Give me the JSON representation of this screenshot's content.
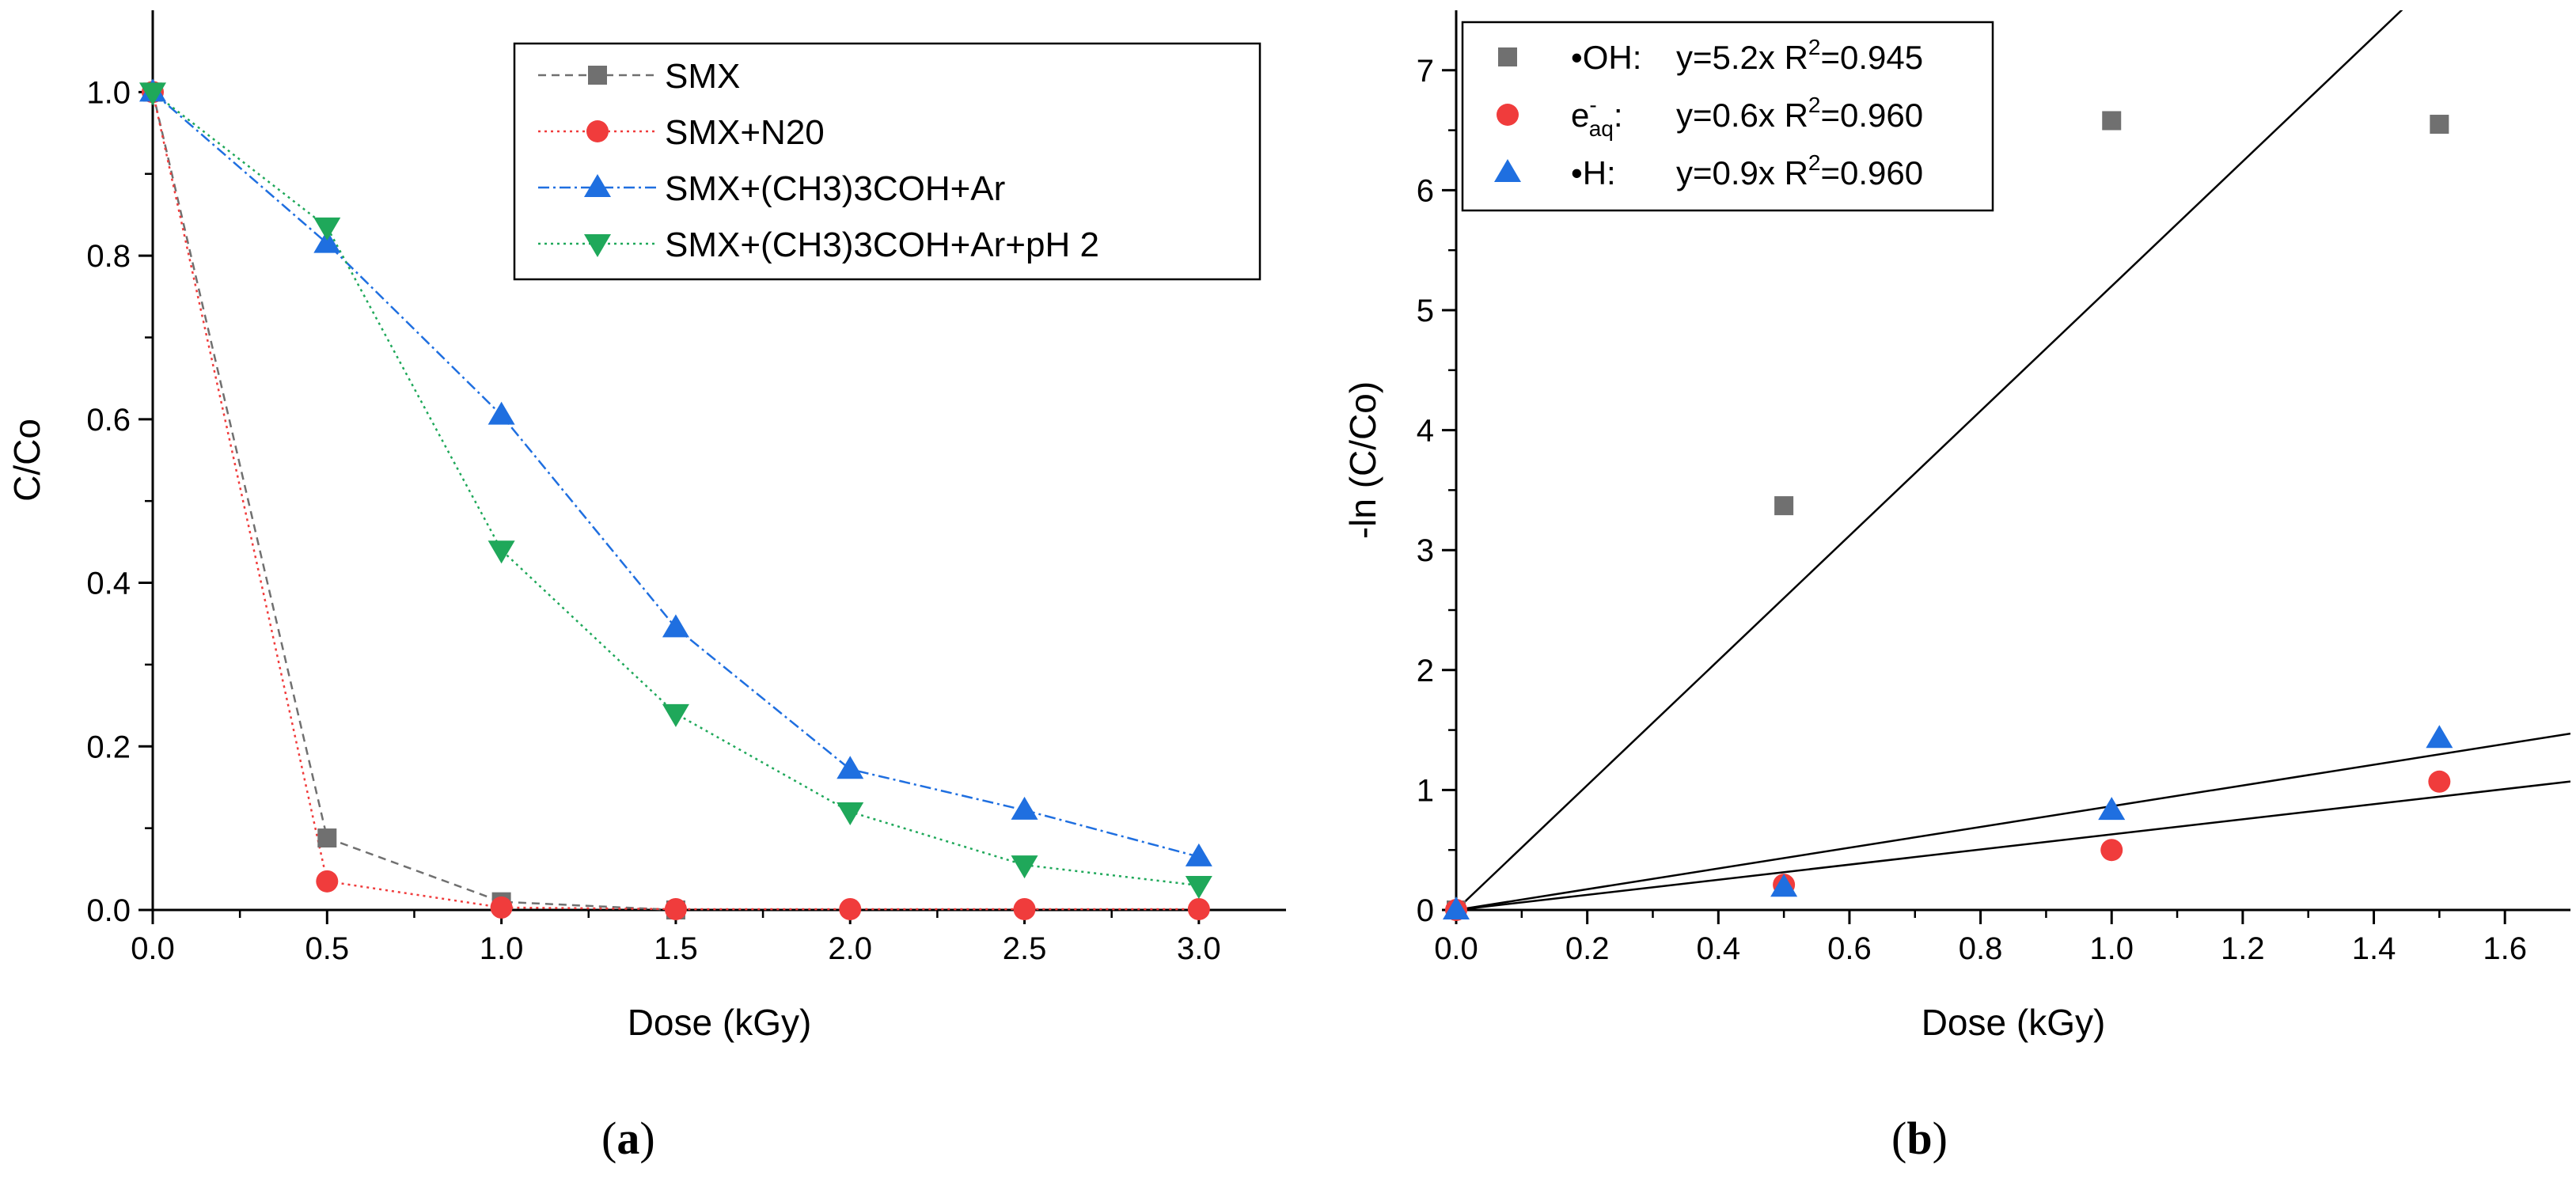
{
  "chart_data": [
    {
      "panel": "(a)",
      "panel_letter": "a",
      "type": "line",
      "xlabel": "Dose (kGy)",
      "ylabel": "C/Co",
      "xlim": [
        0,
        3.25
      ],
      "ylim": [
        0,
        1.1
      ],
      "x_ticks": [
        "0.0",
        "0.5",
        "1.0",
        "1.5",
        "2.0",
        "2.5",
        "3.0"
      ],
      "y_ticks": [
        "0.0",
        "0.2",
        "0.4",
        "0.6",
        "0.8",
        "1.0"
      ],
      "legend_position": "top-right",
      "grid": false,
      "series": [
        {
          "name": "SMX",
          "marker": "square",
          "color": "#707070",
          "dash": "dashed",
          "x": [
            0,
            0.5,
            1.0,
            1.5
          ],
          "y": [
            1.0,
            0.088,
            0.01,
            0.0
          ]
        },
        {
          "name": "SMX+N20",
          "marker": "circle",
          "color": "#f03c3c",
          "dash": "dotted",
          "x": [
            0,
            0.5,
            1.0,
            1.5,
            2.0,
            2.5,
            3.0
          ],
          "y": [
            1.0,
            0.035,
            0.003,
            0.001,
            0.001,
            0.001,
            0.001
          ]
        },
        {
          "name": "SMX+(CH3)3COH+Ar",
          "marker": "triangle-up",
          "color": "#1f6fe0",
          "dash": "dashdot",
          "x": [
            0,
            0.5,
            1.0,
            1.5,
            2.0,
            2.5,
            3.0
          ],
          "y": [
            1.0,
            0.815,
            0.605,
            0.345,
            0.172,
            0.122,
            0.065
          ]
        },
        {
          "name": "SMX+(CH3)3COH+Ar+pH 2",
          "marker": "triangle-down",
          "color": "#1fa85a",
          "dash": "dotted",
          "x": [
            0,
            0.5,
            1.0,
            1.5,
            2.0,
            2.5,
            3.0
          ],
          "y": [
            1.0,
            0.835,
            0.44,
            0.24,
            0.12,
            0.055,
            0.03
          ]
        }
      ]
    },
    {
      "panel": "(b)",
      "panel_letter": "b",
      "type": "scatter",
      "xlabel": "Dose (kGy)",
      "ylabel": "-ln (C/Co)",
      "xlim": [
        0,
        1.7
      ],
      "ylim": [
        0,
        7.5
      ],
      "x_ticks": [
        "0.0",
        "0.2",
        "0.4",
        "0.6",
        "0.8",
        "1.0",
        "1.2",
        "1.4",
        "1.6"
      ],
      "y_ticks": [
        "0",
        "1",
        "2",
        "3",
        "4",
        "5",
        "6",
        "7"
      ],
      "legend_position": "top-left",
      "grid": false,
      "series": [
        {
          "name": "•OH:",
          "eq": "y=5.2x R",
          "r2": "=0.945",
          "marker": "square",
          "color": "#707070",
          "slope": 5.2,
          "x": [
            0,
            0.5,
            1.0,
            1.5
          ],
          "y": [
            0,
            3.37,
            6.58,
            6.55
          ]
        },
        {
          "name": "e",
          "name_sub": "aq",
          "name_sup": "-",
          "name_tail": ":",
          "eq": "y=0.6x R",
          "r2": "=0.960",
          "marker": "circle",
          "color": "#f03c3c",
          "slope": 0.63,
          "x": [
            0,
            0.5,
            1.0,
            1.5
          ],
          "y": [
            0,
            0.21,
            0.5,
            1.07
          ]
        },
        {
          "name": "•H:",
          "eq": "y=0.9x R",
          "r2": "=0.960",
          "marker": "triangle-up",
          "color": "#1f6fe0",
          "slope": 0.865,
          "x": [
            0,
            0.5,
            1.0,
            1.5
          ],
          "y": [
            0,
            0.19,
            0.83,
            1.43
          ]
        }
      ]
    }
  ]
}
